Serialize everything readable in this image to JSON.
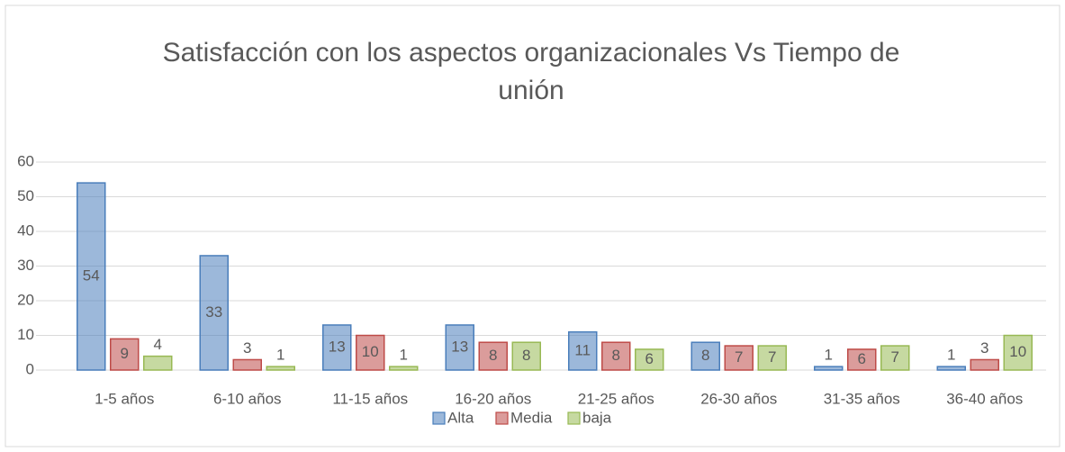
{
  "chart_data": {
    "type": "bar",
    "title": "Satisfacción con los aspectos organizacionales Vs Tiempo de unión",
    "categories": [
      "1-5 años",
      "6-10 años",
      "11-15 años",
      "16-20 años",
      "21-25 años",
      "26-30 años",
      "31-35 años",
      "36-40 años"
    ],
    "series": [
      {
        "name": "Alta",
        "color": "#4a7ebb",
        "values": [
          54,
          33,
          13,
          13,
          11,
          8,
          1,
          1
        ]
      },
      {
        "name": "Media",
        "color": "#be4b48",
        "values": [
          9,
          3,
          10,
          8,
          8,
          7,
          6,
          3
        ]
      },
      {
        "name": "baja",
        "color": "#98b954",
        "values": [
          4,
          1,
          1,
          8,
          6,
          7,
          7,
          10
        ]
      }
    ],
    "ylim": [
      0,
      60
    ],
    "yticks": [
      0,
      10,
      20,
      30,
      40,
      50,
      60
    ],
    "grid": true,
    "legend": "bottom"
  }
}
